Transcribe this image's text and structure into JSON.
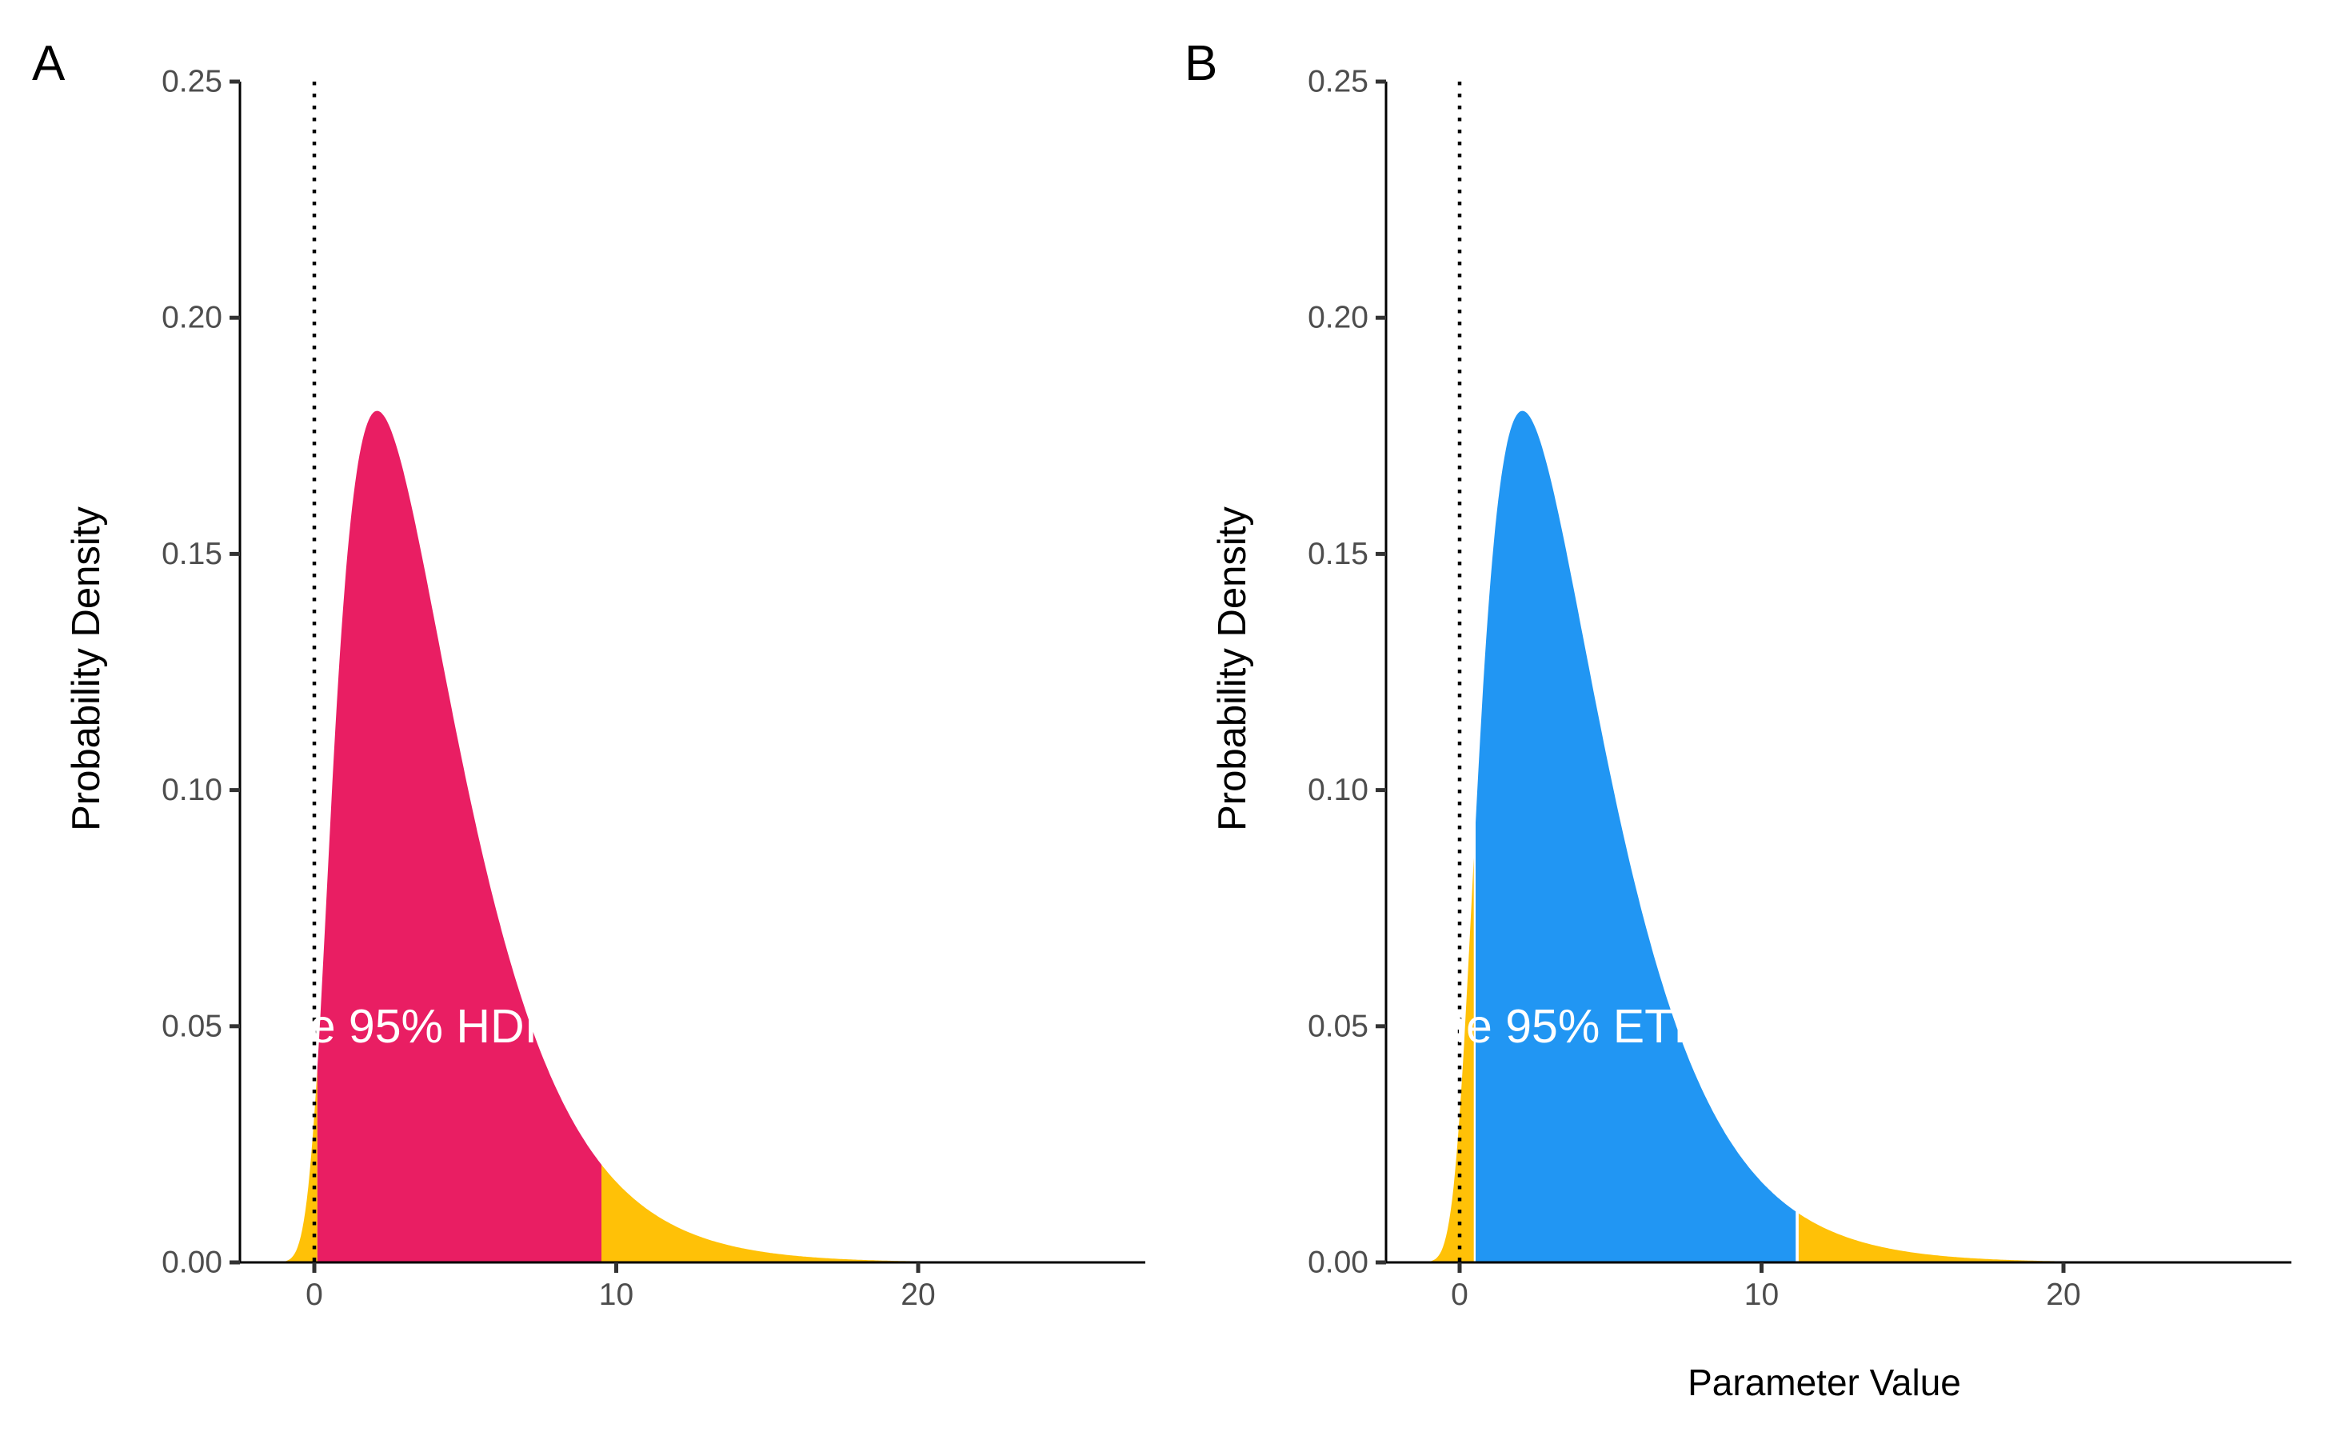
{
  "figure": {
    "background_color": "#FFFFFF",
    "description": "Two density plots comparing the 95% HDI and the 95% ETI of a right-skewed posterior distribution"
  },
  "chart_data": [
    {
      "type": "area",
      "tag": "A",
      "xlabel": "",
      "ylabel": "Probability Density",
      "xlim": [
        -2.46,
        27.5
      ],
      "ylim": [
        0,
        0.25
      ],
      "grid": false,
      "x_ticks": [
        0,
        10,
        20
      ],
      "y_ticks": [
        "0.00",
        "0.05",
        "0.10",
        "0.15",
        "0.20",
        "0.25"
      ],
      "density": {
        "family": "gamma",
        "shape": 2,
        "scale": 2,
        "kde_bandwidth": 0.4,
        "peak_x": 2,
        "peak_y": 0.18
      },
      "interval_label": "95% HDI",
      "interval": [
        0.1,
        9.51
      ],
      "interval_color": "#E91E63",
      "tail_color": "#FFC107",
      "segment_gap_lower": 0,
      "segment_gap_upper": 0,
      "reference_line_x": 0,
      "annotation": {
        "text": "The 95% HDI",
        "x": 2.7,
        "y": 0.05,
        "color": "#FFFFFF"
      },
      "curve_points": {
        "x": [
          -1.0,
          -0.5,
          0,
          0.5,
          1,
          1.5,
          2,
          2.5,
          3,
          4,
          5,
          6,
          7,
          8,
          9,
          9.5,
          10,
          11,
          12,
          14,
          16,
          18,
          20
        ],
        "y": [
          0.001,
          0.007,
          0.04,
          0.098,
          0.152,
          0.172,
          0.18,
          0.176,
          0.167,
          0.135,
          0.103,
          0.075,
          0.053,
          0.037,
          0.025,
          0.021,
          0.017,
          0.011,
          0.007,
          0.003,
          0.001,
          0.0006,
          0.0002
        ]
      }
    },
    {
      "type": "area",
      "tag": "B",
      "xlabel": "Parameter Value",
      "ylabel": "Probability Density",
      "xlim": [
        -2.46,
        27.5
      ],
      "ylim": [
        0,
        0.25
      ],
      "grid": false,
      "x_ticks": [
        0,
        10,
        20
      ],
      "y_ticks": [
        "0.00",
        "0.05",
        "0.10",
        "0.15",
        "0.20",
        "0.25"
      ],
      "density": {
        "family": "gamma",
        "shape": 2,
        "scale": 2,
        "kde_bandwidth": 0.4,
        "peak_x": 2,
        "peak_y": 0.18
      },
      "interval_label": "95% ETI",
      "interval": [
        0.53,
        11.13
      ],
      "interval_color": "#2196F3",
      "tail_color": "#FFC107",
      "segment_gap_lower": 0.06,
      "segment_gap_upper": 0.1,
      "reference_line_x": 0,
      "annotation": {
        "text": "The 95% ETI",
        "x": 2.95,
        "y": 0.05,
        "color": "#FFFFFF"
      },
      "curve_points": {
        "x": [
          -1.0,
          -0.5,
          0,
          0.5,
          1,
          1.5,
          2,
          2.5,
          3,
          4,
          5,
          6,
          7,
          8,
          9,
          10,
          11,
          11.1,
          12,
          14,
          16,
          18,
          20
        ],
        "y": [
          0.001,
          0.007,
          0.04,
          0.098,
          0.152,
          0.172,
          0.18,
          0.176,
          0.167,
          0.135,
          0.103,
          0.075,
          0.053,
          0.037,
          0.025,
          0.017,
          0.011,
          0.011,
          0.007,
          0.003,
          0.001,
          0.0006,
          0.0002
        ]
      }
    }
  ]
}
